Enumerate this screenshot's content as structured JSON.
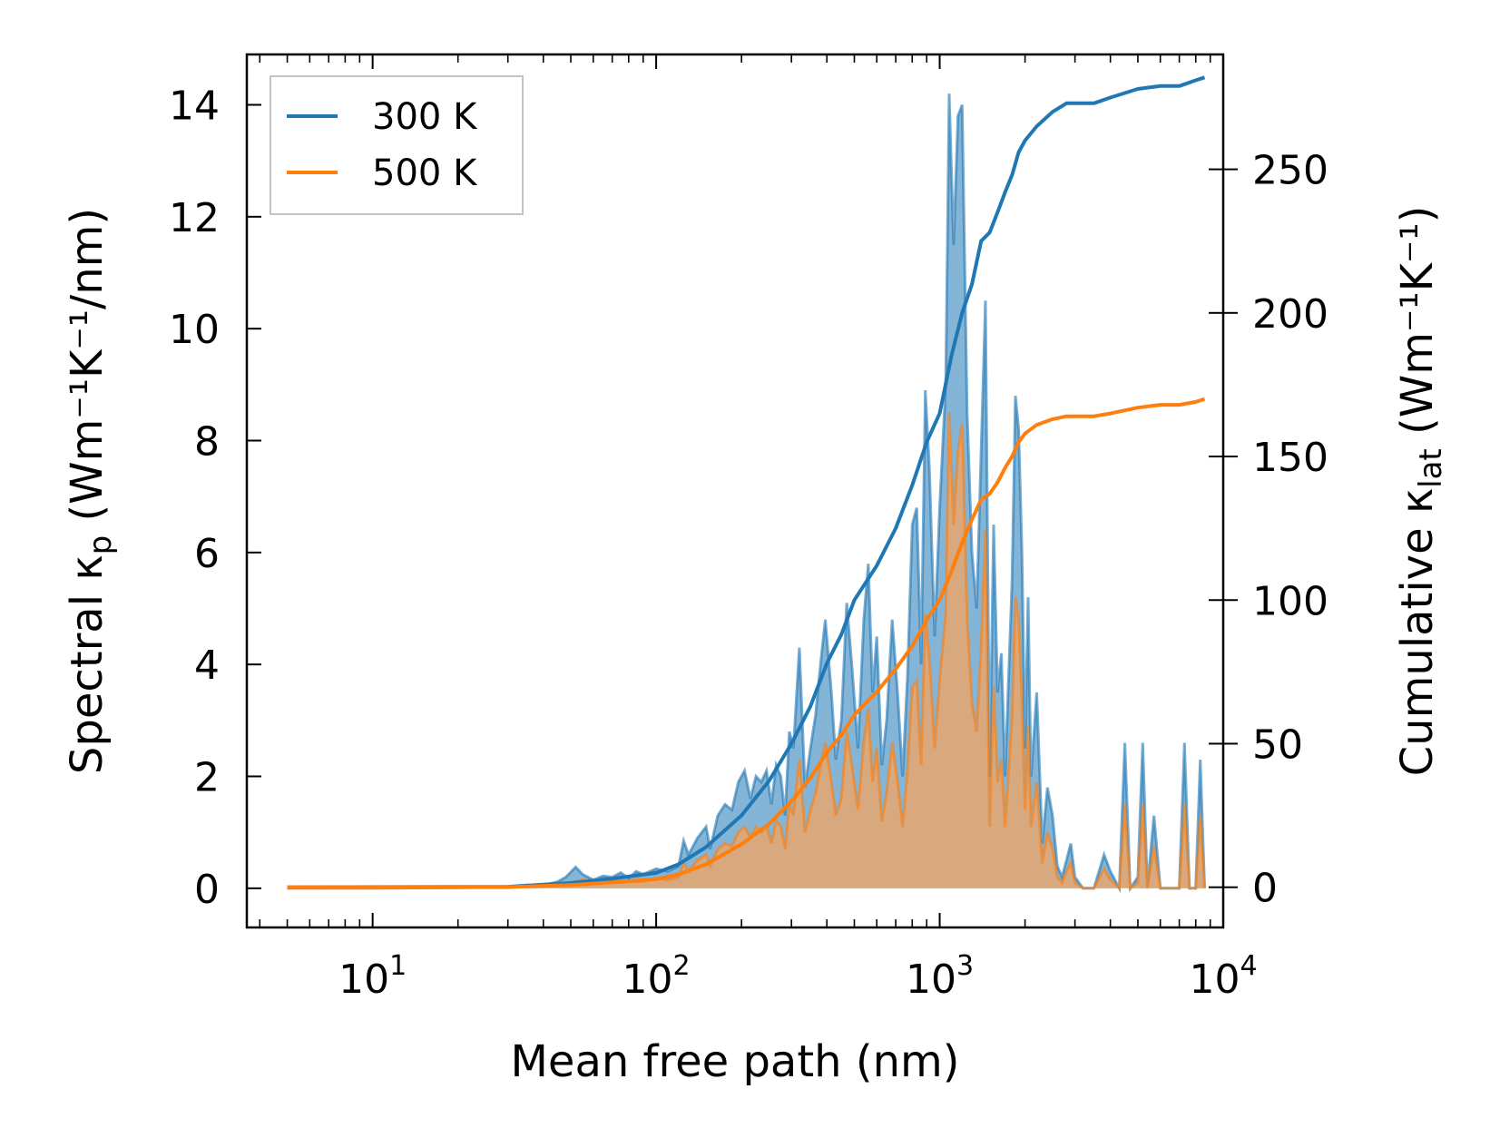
{
  "chart_data": {
    "type": "line",
    "xscale": "log",
    "xlabel": "Mean free path (nm)",
    "ylabel_left": {
      "prefix": "Spectral κ",
      "sub": "p",
      "suffix": " (Wm⁻¹K⁻¹/nm)"
    },
    "ylabel_right": {
      "prefix": "Cumulative κ",
      "sub": "lat",
      "suffix": " (Wm⁻¹K⁻¹)"
    },
    "xlim": [
      3.6,
      10000
    ],
    "ylim_left": [
      -0.7,
      14.9
    ],
    "ylim_right": [
      -14,
      290
    ],
    "x_ticks": [
      {
        "value": 10,
        "base": "10",
        "exp": "1"
      },
      {
        "value": 100,
        "base": "10",
        "exp": "2"
      },
      {
        "value": 1000,
        "base": "10",
        "exp": "3"
      },
      {
        "value": 10000,
        "base": "10",
        "exp": "4"
      }
    ],
    "yticks_left": [
      0,
      2,
      4,
      6,
      8,
      10,
      12,
      14
    ],
    "yticks_right": [
      0,
      50,
      100,
      150,
      200,
      250
    ],
    "legend": {
      "position": "top-left",
      "entries": [
        "300 K",
        "500 K"
      ]
    },
    "series": [
      {
        "name": "300 K",
        "color": "#1f77b4",
        "fill_color": "#1f77b4",
        "spectral": [
          [
            5.0,
            0
          ],
          [
            10,
            0
          ],
          [
            20,
            0.01
          ],
          [
            30,
            0.02
          ],
          [
            35,
            0.06
          ],
          [
            38,
            0.05
          ],
          [
            42,
            0.08
          ],
          [
            45,
            0.12
          ],
          [
            48,
            0.2
          ],
          [
            52,
            0.38
          ],
          [
            55,
            0.25
          ],
          [
            60,
            0.15
          ],
          [
            65,
            0.22
          ],
          [
            70,
            0.2
          ],
          [
            75,
            0.28
          ],
          [
            80,
            0.18
          ],
          [
            85,
            0.3
          ],
          [
            90,
            0.25
          ],
          [
            100,
            0.35
          ],
          [
            110,
            0.3
          ],
          [
            120,
            0.4
          ],
          [
            125,
            0.85
          ],
          [
            130,
            0.6
          ],
          [
            140,
            0.9
          ],
          [
            150,
            1.1
          ],
          [
            155,
            0.7
          ],
          [
            165,
            1.3
          ],
          [
            175,
            1.5
          ],
          [
            185,
            1.4
          ],
          [
            195,
            1.9
          ],
          [
            205,
            2.1
          ],
          [
            215,
            1.6
          ],
          [
            225,
            2.0
          ],
          [
            235,
            1.9
          ],
          [
            245,
            2.1
          ],
          [
            255,
            1.5
          ],
          [
            265,
            2.2
          ],
          [
            275,
            2.0
          ],
          [
            285,
            1.3
          ],
          [
            295,
            2.8
          ],
          [
            305,
            2.5
          ],
          [
            320,
            4.3
          ],
          [
            335,
            1.8
          ],
          [
            350,
            2.5
          ],
          [
            365,
            3.1
          ],
          [
            380,
            4.0
          ],
          [
            395,
            4.8
          ],
          [
            415,
            3.5
          ],
          [
            430,
            2.3
          ],
          [
            450,
            3.0
          ],
          [
            470,
            5.1
          ],
          [
            490,
            4.0
          ],
          [
            515,
            2.5
          ],
          [
            540,
            4.8
          ],
          [
            560,
            5.8
          ],
          [
            580,
            3.5
          ],
          [
            600,
            4.5
          ],
          [
            625,
            2.2
          ],
          [
            650,
            3.0
          ],
          [
            680,
            4.8
          ],
          [
            710,
            3.5
          ],
          [
            740,
            2.0
          ],
          [
            770,
            3.8
          ],
          [
            800,
            6.5
          ],
          [
            830,
            6.8
          ],
          [
            860,
            4.0
          ],
          [
            890,
            8.9
          ],
          [
            920,
            7.5
          ],
          [
            960,
            4.5
          ],
          [
            1000,
            6.8
          ],
          [
            1050,
            9.0
          ],
          [
            1080,
            14.2
          ],
          [
            1120,
            11.5
          ],
          [
            1160,
            13.8
          ],
          [
            1200,
            14.0
          ],
          [
            1250,
            8.5
          ],
          [
            1300,
            6.0
          ],
          [
            1350,
            5.0
          ],
          [
            1400,
            7.8
          ],
          [
            1450,
            10.5
          ],
          [
            1500,
            2.0
          ],
          [
            1550,
            6.5
          ],
          [
            1600,
            3.5
          ],
          [
            1650,
            4.2
          ],
          [
            1700,
            2.0
          ],
          [
            1800,
            5.5
          ],
          [
            1850,
            8.8
          ],
          [
            1900,
            8.2
          ],
          [
            1950,
            6.0
          ],
          [
            2000,
            2.5
          ],
          [
            2050,
            5.2
          ],
          [
            2100,
            2.0
          ],
          [
            2200,
            3.5
          ],
          [
            2300,
            0.8
          ],
          [
            2400,
            1.8
          ],
          [
            2500,
            1.3
          ],
          [
            2600,
            0.4
          ],
          [
            2700,
            0.2
          ],
          [
            2800,
            0.5
          ],
          [
            2900,
            0.8
          ],
          [
            3000,
            0.2
          ],
          [
            3200,
            0
          ],
          [
            3500,
            0
          ],
          [
            3800,
            0.6
          ],
          [
            4000,
            0.3
          ],
          [
            4300,
            0
          ],
          [
            4500,
            2.6
          ],
          [
            4700,
            0
          ],
          [
            5000,
            0.2
          ],
          [
            5200,
            2.6
          ],
          [
            5400,
            0
          ],
          [
            5700,
            1.3
          ],
          [
            6000,
            0
          ],
          [
            7000,
            0
          ],
          [
            7300,
            2.6
          ],
          [
            7600,
            0
          ],
          [
            8000,
            0
          ],
          [
            8300,
            2.3
          ],
          [
            8600,
            0
          ]
        ],
        "cumulative": [
          [
            5.0,
            0
          ],
          [
            30,
            0.2
          ],
          [
            50,
            1.5
          ],
          [
            70,
            3
          ],
          [
            100,
            5
          ],
          [
            120,
            8
          ],
          [
            150,
            14
          ],
          [
            200,
            25
          ],
          [
            250,
            37
          ],
          [
            300,
            50
          ],
          [
            350,
            63
          ],
          [
            400,
            78
          ],
          [
            450,
            88
          ],
          [
            500,
            100
          ],
          [
            600,
            112
          ],
          [
            700,
            125
          ],
          [
            800,
            140
          ],
          [
            900,
            155
          ],
          [
            1000,
            165
          ],
          [
            1100,
            185
          ],
          [
            1200,
            200
          ],
          [
            1300,
            210
          ],
          [
            1400,
            225
          ],
          [
            1500,
            228
          ],
          [
            1600,
            235
          ],
          [
            1700,
            242
          ],
          [
            1800,
            248
          ],
          [
            1900,
            256
          ],
          [
            2000,
            260
          ],
          [
            2200,
            265
          ],
          [
            2500,
            270
          ],
          [
            2800,
            273
          ],
          [
            3000,
            273
          ],
          [
            3500,
            273
          ],
          [
            4000,
            275
          ],
          [
            5000,
            278
          ],
          [
            6000,
            279
          ],
          [
            7000,
            279
          ],
          [
            8000,
            281
          ],
          [
            8600,
            282
          ]
        ]
      },
      {
        "name": "500 K",
        "color": "#ff7f0e",
        "fill_color": "#f4a460",
        "spectral": [
          [
            5.0,
            0
          ],
          [
            10,
            0
          ],
          [
            20,
            0.01
          ],
          [
            30,
            0.01
          ],
          [
            35,
            0.03
          ],
          [
            40,
            0.04
          ],
          [
            45,
            0.06
          ],
          [
            50,
            0.1
          ],
          [
            55,
            0.15
          ],
          [
            60,
            0.1
          ],
          [
            70,
            0.1
          ],
          [
            80,
            0.12
          ],
          [
            90,
            0.12
          ],
          [
            100,
            0.18
          ],
          [
            110,
            0.15
          ],
          [
            120,
            0.2
          ],
          [
            125,
            0.45
          ],
          [
            130,
            0.3
          ],
          [
            140,
            0.5
          ],
          [
            150,
            0.6
          ],
          [
            155,
            0.4
          ],
          [
            165,
            0.7
          ],
          [
            175,
            0.8
          ],
          [
            185,
            0.75
          ],
          [
            195,
            1.0
          ],
          [
            205,
            1.1
          ],
          [
            215,
            0.9
          ],
          [
            225,
            1.1
          ],
          [
            235,
            1.0
          ],
          [
            245,
            1.1
          ],
          [
            255,
            0.8
          ],
          [
            265,
            1.2
          ],
          [
            275,
            1.1
          ],
          [
            285,
            0.7
          ],
          [
            295,
            1.5
          ],
          [
            305,
            1.3
          ],
          [
            320,
            2.3
          ],
          [
            335,
            1.0
          ],
          [
            350,
            1.4
          ],
          [
            365,
            1.7
          ],
          [
            380,
            2.2
          ],
          [
            395,
            2.6
          ],
          [
            415,
            1.9
          ],
          [
            430,
            1.3
          ],
          [
            450,
            1.6
          ],
          [
            470,
            2.8
          ],
          [
            490,
            2.2
          ],
          [
            515,
            1.4
          ],
          [
            540,
            2.6
          ],
          [
            560,
            3.2
          ],
          [
            580,
            1.9
          ],
          [
            600,
            2.5
          ],
          [
            625,
            1.2
          ],
          [
            650,
            1.7
          ],
          [
            680,
            2.6
          ],
          [
            710,
            1.9
          ],
          [
            740,
            1.1
          ],
          [
            770,
            2.1
          ],
          [
            800,
            3.6
          ],
          [
            830,
            3.7
          ],
          [
            860,
            2.2
          ],
          [
            890,
            4.9
          ],
          [
            920,
            4.1
          ],
          [
            960,
            2.5
          ],
          [
            1000,
            3.7
          ],
          [
            1050,
            4.9
          ],
          [
            1080,
            8.5
          ],
          [
            1120,
            6.5
          ],
          [
            1160,
            7.8
          ],
          [
            1200,
            8.3
          ],
          [
            1250,
            4.8
          ],
          [
            1300,
            3.3
          ],
          [
            1350,
            2.8
          ],
          [
            1400,
            4.3
          ],
          [
            1450,
            6.4
          ],
          [
            1500,
            1.1
          ],
          [
            1550,
            3.6
          ],
          [
            1600,
            1.9
          ],
          [
            1650,
            2.3
          ],
          [
            1700,
            1.1
          ],
          [
            1800,
            3.0
          ],
          [
            1850,
            5.2
          ],
          [
            1900,
            4.8
          ],
          [
            1950,
            3.3
          ],
          [
            2000,
            1.4
          ],
          [
            2050,
            2.9
          ],
          [
            2100,
            1.1
          ],
          [
            2200,
            1.9
          ],
          [
            2300,
            0.45
          ],
          [
            2400,
            1.0
          ],
          [
            2500,
            0.7
          ],
          [
            2600,
            0.2
          ],
          [
            2700,
            0.1
          ],
          [
            2800,
            0.3
          ],
          [
            2900,
            0.45
          ],
          [
            3000,
            0.1
          ],
          [
            3200,
            0
          ],
          [
            3500,
            0
          ],
          [
            3800,
            0.35
          ],
          [
            4000,
            0.15
          ],
          [
            4300,
            0
          ],
          [
            4500,
            1.5
          ],
          [
            4700,
            0
          ],
          [
            5000,
            0.1
          ],
          [
            5200,
            1.5
          ],
          [
            5400,
            0
          ],
          [
            5700,
            0.75
          ],
          [
            6000,
            0
          ],
          [
            7000,
            0
          ],
          [
            7300,
            1.5
          ],
          [
            7600,
            0
          ],
          [
            8000,
            0
          ],
          [
            8300,
            1.3
          ],
          [
            8600,
            0
          ]
        ],
        "cumulative": [
          [
            5.0,
            0
          ],
          [
            30,
            0.1
          ],
          [
            50,
            0.8
          ],
          [
            70,
            1.7
          ],
          [
            100,
            2.8
          ],
          [
            120,
            4.5
          ],
          [
            150,
            8
          ],
          [
            200,
            15
          ],
          [
            250,
            22
          ],
          [
            300,
            30
          ],
          [
            350,
            38
          ],
          [
            400,
            47
          ],
          [
            450,
            53
          ],
          [
            500,
            60
          ],
          [
            600,
            68
          ],
          [
            700,
            76
          ],
          [
            800,
            84
          ],
          [
            900,
            93
          ],
          [
            1000,
            100
          ],
          [
            1100,
            110
          ],
          [
            1200,
            120
          ],
          [
            1300,
            128
          ],
          [
            1400,
            135
          ],
          [
            1500,
            137
          ],
          [
            1600,
            141
          ],
          [
            1700,
            146
          ],
          [
            1800,
            150
          ],
          [
            1900,
            155
          ],
          [
            2000,
            158
          ],
          [
            2200,
            161
          ],
          [
            2500,
            163
          ],
          [
            2800,
            164
          ],
          [
            3000,
            164
          ],
          [
            3500,
            164
          ],
          [
            4000,
            165
          ],
          [
            5000,
            167
          ],
          [
            6000,
            168
          ],
          [
            7000,
            168
          ],
          [
            8000,
            169
          ],
          [
            8600,
            170
          ]
        ]
      }
    ]
  }
}
